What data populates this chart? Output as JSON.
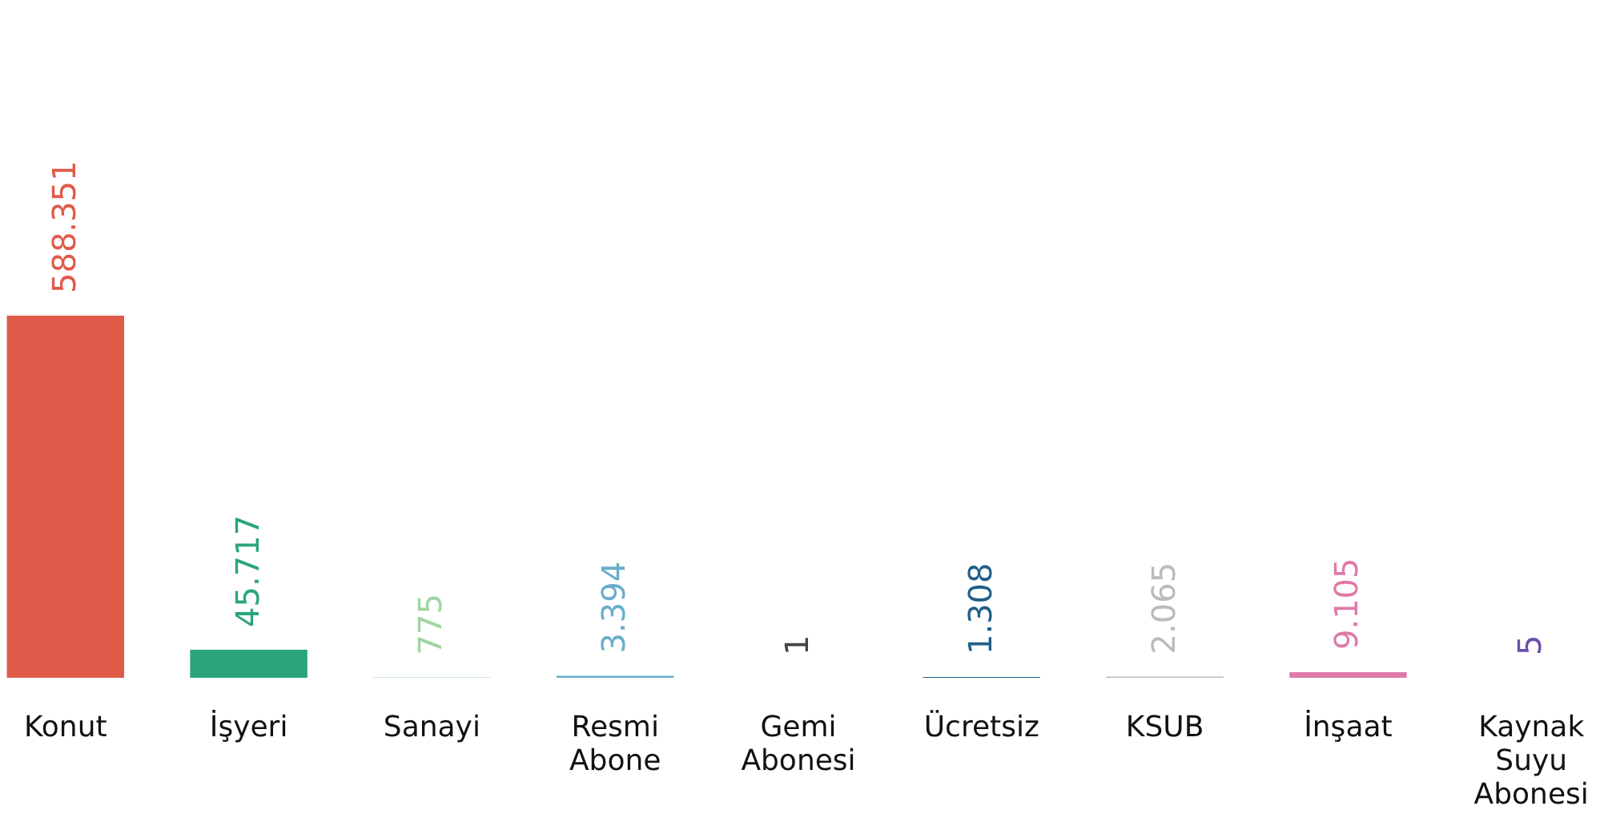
{
  "chart_data": {
    "type": "bar",
    "categories": [
      "Konut",
      "İşyeri",
      "Sanayi",
      "Resmi Abone",
      "Gemi Abonesi",
      "Ücretsiz",
      "KSUB",
      "İnşaat",
      "Kaynak Suyu Abonesi"
    ],
    "values": [
      588351,
      45717,
      775,
      3394,
      1,
      1308,
      2065,
      9105,
      5
    ],
    "value_labels": [
      "588.351",
      "45.717",
      "775",
      "3.394",
      "1",
      "1.308",
      "2.065",
      "9.105",
      "5"
    ],
    "colors": [
      "#e05a4a",
      "#2aa57a",
      "#9fd49f",
      "#6aaec8",
      "#444444",
      "#1f5f8b",
      "#bbbbbb",
      "#e07aa8",
      "#6a4fa8"
    ]
  }
}
